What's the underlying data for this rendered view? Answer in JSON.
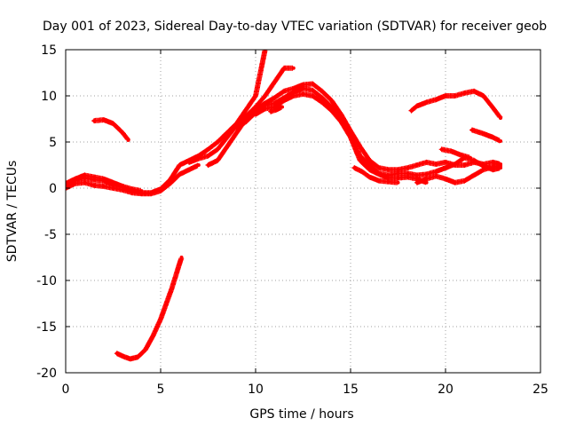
{
  "chart_data": {
    "type": "scatter",
    "title": "Day 001 of 2023, Sidereal Day-to-day VTEC variation (SDTVAR) for receiver geob",
    "xlabel": "GPS time / hours",
    "ylabel": "SDTVAR / TECUs",
    "xlim": [
      0,
      25
    ],
    "ylim": [
      -20,
      15
    ],
    "xticks": [
      0,
      5,
      10,
      15,
      20,
      25
    ],
    "yticks": [
      -20,
      -15,
      -10,
      -5,
      0,
      5,
      10,
      15
    ],
    "xtick_labels": [
      "0",
      "5",
      "10",
      "15",
      "20",
      "25"
    ],
    "ytick_labels": [
      "-20",
      "-15",
      "-10",
      "-5",
      "0",
      "5",
      "10",
      "15"
    ],
    "grid": true,
    "color": "#ff0000",
    "series": [
      {
        "name": "s1",
        "points": [
          [
            0,
            0.3
          ],
          [
            0.5,
            0.8
          ],
          [
            1,
            1.1
          ],
          [
            1.5,
            0.9
          ],
          [
            2,
            0.8
          ],
          [
            2.5,
            0.4
          ],
          [
            3,
            0.1
          ],
          [
            3.5,
            -0.3
          ],
          [
            4,
            -0.5
          ],
          [
            4.5,
            -0.5
          ],
          [
            5,
            -0.1
          ],
          [
            5.5,
            0.9
          ],
          [
            6,
            2.5
          ],
          [
            6.5,
            3
          ],
          [
            7,
            3.5
          ],
          [
            7.5,
            4.2
          ],
          [
            8,
            5
          ],
          [
            8.5,
            6
          ],
          [
            9,
            7
          ],
          [
            9.5,
            8.5
          ],
          [
            10,
            10
          ],
          [
            10.3,
            13
          ],
          [
            10.5,
            15
          ]
        ]
      },
      {
        "name": "s2",
        "points": [
          [
            0,
            0
          ],
          [
            0.5,
            0.5
          ],
          [
            1,
            0.6
          ],
          [
            1.5,
            0.3
          ],
          [
            2,
            0.2
          ],
          [
            2.5,
            0
          ],
          [
            3,
            -0.2
          ],
          [
            3.5,
            -0.5
          ],
          [
            4,
            -0.6
          ],
          [
            4.5,
            -0.6
          ],
          [
            5,
            -0.3
          ],
          [
            5.5,
            0.5
          ],
          [
            6,
            1.5
          ],
          [
            6.5,
            2
          ],
          [
            7,
            2.5
          ]
        ]
      },
      {
        "name": "s3",
        "points": [
          [
            0,
            0.5
          ],
          [
            0.5,
            1
          ],
          [
            1,
            1.4
          ],
          [
            1.5,
            1.2
          ],
          [
            2,
            1
          ],
          [
            2.5,
            0.6
          ],
          [
            3,
            0.2
          ],
          [
            3.5,
            -0.1
          ],
          [
            4,
            -0.3
          ]
        ]
      },
      {
        "name": "s4",
        "points": [
          [
            1.5,
            7.3
          ],
          [
            2,
            7.4
          ],
          [
            2.5,
            7
          ],
          [
            3,
            6
          ],
          [
            3.3,
            5.2
          ]
        ]
      },
      {
        "name": "s5",
        "points": [
          [
            2.7,
            -17.9
          ],
          [
            3,
            -18.2
          ],
          [
            3.4,
            -18.5
          ],
          [
            3.8,
            -18.3
          ],
          [
            4.2,
            -17.5
          ],
          [
            4.6,
            -16
          ],
          [
            5,
            -14.2
          ],
          [
            5.3,
            -12.5
          ],
          [
            5.6,
            -10.8
          ],
          [
            5.9,
            -8.8
          ],
          [
            6.1,
            -7.5
          ]
        ]
      },
      {
        "name": "s6",
        "points": [
          [
            6.5,
            2.8
          ],
          [
            7,
            3.2
          ],
          [
            7.5,
            3.5
          ],
          [
            8,
            4.2
          ],
          [
            8.5,
            5.5
          ],
          [
            9,
            6.8
          ],
          [
            9.5,
            7.8
          ],
          [
            10,
            8.8
          ],
          [
            10.5,
            10
          ],
          [
            11,
            11.5
          ],
          [
            11.5,
            13
          ],
          [
            12,
            13
          ]
        ]
      },
      {
        "name": "s7",
        "points": [
          [
            7.5,
            2.5
          ],
          [
            8,
            3
          ],
          [
            8.5,
            4.5
          ],
          [
            9,
            6
          ],
          [
            9.5,
            7.5
          ],
          [
            10,
            8.5
          ],
          [
            10.5,
            9.2
          ],
          [
            11,
            9.8
          ],
          [
            11.5,
            10.5
          ],
          [
            12,
            10.8
          ],
          [
            12.5,
            11.2
          ],
          [
            13,
            11.3
          ],
          [
            13.5,
            10.5
          ],
          [
            14,
            9.5
          ],
          [
            14.5,
            8
          ],
          [
            15,
            6.2
          ],
          [
            15.5,
            4.5
          ],
          [
            16,
            3
          ],
          [
            16.5,
            2.2
          ],
          [
            17,
            2
          ],
          [
            17.5,
            2
          ],
          [
            18,
            2.2
          ],
          [
            18.5,
            2.5
          ],
          [
            19,
            2.8
          ],
          [
            19.5,
            2.6
          ],
          [
            20,
            2.8
          ],
          [
            20.5,
            2.5
          ],
          [
            21,
            2.5
          ],
          [
            21.5,
            2.8
          ],
          [
            22,
            2.6
          ],
          [
            22.5,
            2.8
          ],
          [
            22.9,
            2.6
          ]
        ]
      },
      {
        "name": "s8",
        "points": [
          [
            9,
            6.5
          ],
          [
            9.5,
            7.2
          ],
          [
            10,
            8.2
          ],
          [
            10.5,
            9
          ],
          [
            11,
            9.2
          ],
          [
            11.5,
            9.8
          ],
          [
            12,
            10.4
          ],
          [
            12.5,
            10.8
          ],
          [
            13,
            10.6
          ],
          [
            13.5,
            9.8
          ],
          [
            14,
            8.8
          ],
          [
            14.5,
            7.5
          ],
          [
            15,
            5.8
          ],
          [
            15.5,
            3.5
          ],
          [
            16,
            2.5
          ],
          [
            16.5,
            1.6
          ],
          [
            17,
            1.4
          ],
          [
            17.5,
            1.6
          ],
          [
            18,
            1.6
          ],
          [
            18.5,
            1.4
          ],
          [
            19,
            1.5
          ],
          [
            19.5,
            1.8
          ],
          [
            20,
            2.2
          ],
          [
            20.5,
            2.6
          ],
          [
            21,
            3.3
          ],
          [
            21.5,
            3
          ],
          [
            22,
            2.4
          ],
          [
            22.5,
            2
          ],
          [
            22.9,
            2.2
          ]
        ]
      },
      {
        "name": "s9",
        "points": [
          [
            10,
            8
          ],
          [
            10.5,
            8.6
          ],
          [
            11,
            8.8
          ],
          [
            11.5,
            9.5
          ],
          [
            12,
            10
          ],
          [
            12.5,
            10.2
          ],
          [
            13,
            10
          ],
          [
            13.5,
            9.3
          ],
          [
            14,
            8.4
          ],
          [
            14.5,
            7.2
          ],
          [
            15,
            5.5
          ],
          [
            15.5,
            3
          ],
          [
            16,
            2
          ],
          [
            16.5,
            1.5
          ],
          [
            17,
            1.1
          ],
          [
            17.5,
            1.1
          ],
          [
            18,
            1.2
          ],
          [
            18.5,
            1
          ],
          [
            19,
            0.6
          ]
        ]
      },
      {
        "name": "s10",
        "points": [
          [
            15.2,
            2.2
          ],
          [
            15.6,
            1.8
          ],
          [
            16,
            1.2
          ],
          [
            16.5,
            0.8
          ],
          [
            17,
            0.7
          ],
          [
            17.5,
            0.6
          ]
        ]
      },
      {
        "name": "s11",
        "points": [
          [
            18.5,
            0.6
          ],
          [
            19,
            1
          ],
          [
            19.5,
            1.3
          ],
          [
            20,
            1
          ],
          [
            20.5,
            0.6
          ],
          [
            21,
            0.8
          ],
          [
            21.5,
            1.4
          ],
          [
            22,
            2
          ],
          [
            22.5,
            2.3
          ],
          [
            22.9,
            2.4
          ]
        ]
      },
      {
        "name": "s12",
        "points": [
          [
            19.8,
            4.2
          ],
          [
            20.3,
            4
          ],
          [
            20.8,
            3.6
          ],
          [
            21.3,
            3.3
          ]
        ]
      },
      {
        "name": "s13",
        "points": [
          [
            18.2,
            8.4
          ],
          [
            18.5,
            8.9
          ],
          [
            19,
            9.3
          ],
          [
            19.5,
            9.6
          ],
          [
            20,
            10
          ],
          [
            20.5,
            10
          ],
          [
            21,
            10.3
          ],
          [
            21.5,
            10.5
          ],
          [
            22,
            10
          ],
          [
            22.5,
            8.7
          ],
          [
            22.9,
            7.6
          ]
        ]
      },
      {
        "name": "s14",
        "points": [
          [
            21.4,
            6.3
          ],
          [
            22,
            5.9
          ],
          [
            22.5,
            5.5
          ],
          [
            22.9,
            5.1
          ]
        ]
      },
      {
        "name": "s15",
        "points": [
          [
            10.8,
            8.3
          ],
          [
            11.1,
            8.5
          ],
          [
            11.4,
            8.8
          ]
        ]
      }
    ]
  }
}
